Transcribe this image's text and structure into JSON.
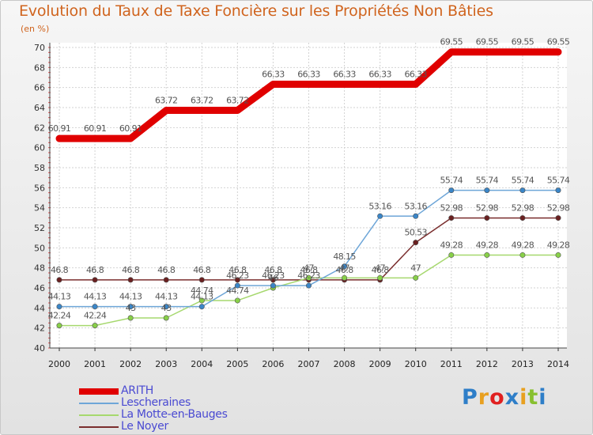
{
  "header": {
    "title": "Evolution du Taux de Taxe Foncière sur les Propriétés Non Bâties",
    "unit": "(en %)"
  },
  "chart_data": {
    "type": "line",
    "title": "Evolution du Taux de Taxe Foncière sur les Propriétés Non Bâties",
    "ylabel": "(en %)",
    "xlabel": "",
    "categories": [
      "2000",
      "2001",
      "2002",
      "2003",
      "2004",
      "2005",
      "2006",
      "2007",
      "2008",
      "2009",
      "2010",
      "2011",
      "2012",
      "2013",
      "2014"
    ],
    "ylim": [
      40,
      70
    ],
    "yticks": [
      40,
      42,
      44,
      46,
      48,
      50,
      52,
      54,
      56,
      58,
      60,
      62,
      64,
      66,
      68,
      70
    ],
    "grid": true,
    "legend_position": "bottom-left",
    "series": [
      {
        "name": "ARITH",
        "color": "#e00000",
        "values": [
          60.91,
          60.91,
          60.91,
          63.72,
          63.72,
          63.72,
          66.33,
          66.33,
          66.33,
          66.33,
          66.33,
          69.55,
          69.55,
          69.55,
          69.55
        ],
        "labels": [
          "60.91",
          "60.91",
          "60.91",
          "63.72",
          "63.72",
          "63.72",
          "66.33",
          "66.33",
          "66.33",
          "66.33",
          "66.33",
          "69.55",
          "69.55",
          "69.55",
          "69.55"
        ]
      },
      {
        "name": "Lescheraines",
        "color": "#6ea6d8",
        "marker": "#3a86c8",
        "values": [
          44.13,
          44.13,
          44.13,
          44.13,
          44.13,
          46.23,
          46.23,
          46.23,
          48.15,
          53.16,
          53.16,
          55.74,
          55.74,
          55.74,
          55.74
        ],
        "labels": [
          "44.13",
          "44.13",
          "44.13",
          "44.13",
          "44.13",
          "46.23",
          "46.23",
          "46.23",
          "48.15",
          "53.16",
          "53.16",
          "55.74",
          "55.74",
          "55.74",
          "55.74"
        ]
      },
      {
        "name": "La Motte-en-Bauges",
        "color": "#a6d86e",
        "marker": "#88d048",
        "values": [
          42.24,
          42.24,
          43,
          43,
          44.74,
          44.74,
          46,
          47,
          47,
          47,
          47,
          49.28,
          49.28,
          49.28,
          49.28
        ],
        "labels": [
          "42.24",
          "42.24",
          "43",
          "43",
          "44.74",
          "44.74",
          "46",
          "47",
          "47",
          "47",
          "47",
          "49.28",
          "49.28",
          "49.28",
          "49.28"
        ]
      },
      {
        "name": "Le Noyer",
        "color": "#7a2e2e",
        "marker": "#6a2020",
        "values": [
          46.8,
          46.8,
          46.8,
          46.8,
          46.8,
          46.8,
          46.8,
          46.8,
          46.8,
          46.8,
          50.53,
          52.98,
          52.98,
          52.98,
          52.98
        ],
        "labels": [
          "46.8",
          "46.8",
          "46.8",
          "46.8",
          "46.8",
          "46.8",
          "46.8",
          "46.8",
          "46.8",
          "46.8",
          "50.53",
          "52.98",
          "52.98",
          "52.98",
          "52.98"
        ]
      }
    ]
  },
  "legend": {
    "items": [
      {
        "label": "ARITH",
        "color": "#e00000"
      },
      {
        "label": "Lescheraines",
        "color": "#6ea6d8"
      },
      {
        "label": "La Motte-en-Bauges",
        "color": "#a6d86e"
      },
      {
        "label": "Le Noyer",
        "color": "#7a2e2e"
      }
    ]
  },
  "logo": {
    "text": "Proxiti",
    "colors": [
      "#2e7ec8",
      "#e8a020",
      "#e02020",
      "#2e7ec8",
      "#e8a020",
      "#88c030",
      "#2e7ec8"
    ]
  }
}
